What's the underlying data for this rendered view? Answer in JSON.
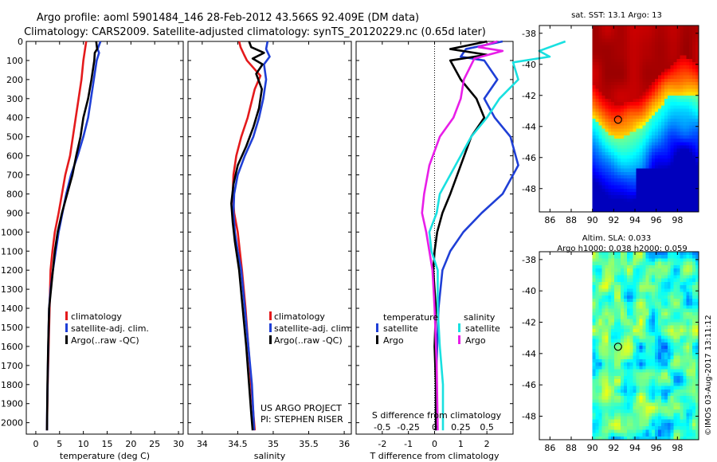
{
  "header": {
    "line1": "Argo profile: aoml 5901484_146 28-Feb-2012 43.566S 92.409E (DM data)",
    "line2": "Climatology: CARS2009. Satellite-adjusted climatology: synTS_20120229.nc (0.65d later)"
  },
  "colors": {
    "climatology": "#e41a1c",
    "satellite": "#1f3fd6",
    "argo": "#000000",
    "sat_salinity": "#19e0e0",
    "argo_salinity": "#e81ee8"
  },
  "chart_data": [
    {
      "id": "temperature",
      "type": "line",
      "xlabel": "temperature (deg C)",
      "ylabel": "",
      "xlim": [
        -2,
        31
      ],
      "ylim": [
        2060,
        0
      ],
      "xticks": [
        0,
        5,
        10,
        15,
        20,
        25,
        30
      ],
      "xticklabels": [
        "0",
        "5",
        "10",
        "15",
        "20",
        "25",
        "30"
      ],
      "yticks": [
        0,
        100,
        200,
        300,
        400,
        500,
        600,
        700,
        800,
        900,
        1000,
        1100,
        1200,
        1300,
        1400,
        1500,
        1600,
        1700,
        1800,
        1900,
        2000
      ],
      "yticklabels": [
        "0",
        "100",
        "200",
        "300",
        "400",
        "500",
        "600",
        "700",
        "800",
        "900",
        "1000",
        "1100",
        "1200",
        "1300",
        "1400",
        "1500",
        "1600",
        "1700",
        "1800",
        "1900",
        "2000"
      ],
      "legend": [
        "climatology",
        "satellite-adj. clim.",
        "Argo(..raw -QC)"
      ],
      "series": [
        {
          "name": "climatology",
          "color": "#e41a1c",
          "x": [
            10.6,
            10.3,
            10.0,
            9.6,
            9.0,
            8.4,
            7.8,
            7.2,
            6.2,
            5.5,
            4.8,
            4.0,
            3.5,
            3.1,
            2.9,
            2.7,
            2.5,
            2.4,
            2.35
          ],
          "y": [
            0,
            50,
            100,
            200,
            300,
            400,
            500,
            600,
            700,
            800,
            900,
            1000,
            1100,
            1200,
            1400,
            1600,
            1800,
            1950,
            2040
          ]
        },
        {
          "name": "satellite-adj. clim.",
          "color": "#1f3fd6",
          "x": [
            13.6,
            13.0,
            13.3,
            12.8,
            12.2,
            11.6,
            11.0,
            10.0,
            8.8,
            7.4,
            6.4,
            5.6,
            4.8,
            4.2,
            3.6,
            3.1,
            2.8,
            2.7,
            2.55,
            2.4,
            2.35
          ],
          "y": [
            0,
            40,
            60,
            100,
            200,
            300,
            400,
            500,
            600,
            700,
            800,
            900,
            1000,
            1100,
            1200,
            1300,
            1400,
            1500,
            1700,
            1900,
            2040
          ]
        },
        {
          "name": "Argo(..raw -QC)",
          "color": "#000000",
          "x": [
            12.7,
            12.9,
            12.4,
            12.3,
            11.7,
            11.0,
            10.0,
            9.4,
            8.5,
            7.7,
            6.6,
            5.5,
            4.6,
            4.0,
            3.6,
            3.2,
            2.8,
            2.6,
            2.45,
            2.35
          ],
          "y": [
            0,
            40,
            60,
            100,
            200,
            300,
            400,
            500,
            600,
            700,
            800,
            900,
            1000,
            1100,
            1200,
            1300,
            1400,
            1600,
            1800,
            2040
          ]
        }
      ]
    },
    {
      "id": "salinity",
      "type": "line",
      "xlabel": "salinity",
      "xlim": [
        33.8,
        36.1
      ],
      "ylim": [
        2060,
        0
      ],
      "xticks": [
        34,
        34.5,
        35,
        35.5,
        36
      ],
      "xticklabels": [
        "34",
        "34.5",
        "35",
        "35.5",
        "36"
      ],
      "legend": [
        "climatology",
        "satellite-adj. clim.",
        "Argo(..raw -QC)"
      ],
      "annotation": [
        "US ARGO PROJECT",
        "PI: STEPHEN RISER"
      ],
      "series": [
        {
          "name": "climatology",
          "color": "#e41a1c",
          "x": [
            34.52,
            34.54,
            34.59,
            34.63,
            34.82,
            34.74,
            34.64,
            34.55,
            34.48,
            34.44,
            34.43,
            34.45,
            34.5,
            34.56,
            34.61,
            34.65,
            34.69,
            34.72,
            34.74
          ],
          "y": [
            0,
            30,
            70,
            100,
            180,
            250,
            400,
            500,
            600,
            700,
            800,
            900,
            1000,
            1200,
            1400,
            1600,
            1800,
            1950,
            2040
          ]
        },
        {
          "name": "satellite-adj. clim.",
          "color": "#1f3fd6",
          "x": [
            34.92,
            34.9,
            34.95,
            34.87,
            34.9,
            34.86,
            34.8,
            34.72,
            34.6,
            34.5,
            34.45,
            34.44,
            34.46,
            34.5,
            34.55,
            34.6,
            34.65,
            34.7,
            34.72,
            34.73
          ],
          "y": [
            0,
            40,
            80,
            120,
            200,
            300,
            400,
            500,
            600,
            700,
            800,
            900,
            1000,
            1100,
            1200,
            1400,
            1600,
            1800,
            1950,
            2040
          ]
        },
        {
          "name": "Argo(..raw -QC)",
          "color": "#000000",
          "x": [
            34.66,
            34.69,
            34.87,
            34.71,
            34.85,
            34.76,
            34.84,
            34.8,
            34.72,
            34.62,
            34.5,
            34.44,
            34.41,
            34.43,
            34.46,
            34.52,
            34.57,
            34.62,
            34.66,
            34.69,
            34.71
          ],
          "y": [
            0,
            30,
            60,
            90,
            120,
            170,
            250,
            350,
            450,
            550,
            650,
            750,
            850,
            950,
            1050,
            1200,
            1400,
            1600,
            1800,
            1950,
            2040
          ]
        }
      ]
    },
    {
      "id": "difference",
      "type": "line",
      "xlabel": "T difference from climatology",
      "toplabel": "S difference from climatology",
      "xlim": [
        -3,
        3
      ],
      "ylim": [
        2060,
        0
      ],
      "xticks": [
        -2,
        -1,
        0,
        1,
        2
      ],
      "xticklabels": [
        "-2",
        "-1",
        "0",
        "1",
        "2"
      ],
      "sticks": [
        -0.5,
        -0.25,
        0,
        0.25,
        0.5
      ],
      "sticklabels": [
        "-0.5",
        "-0.25",
        "0",
        "0.25",
        "0.5"
      ],
      "legend_headers": [
        "temperature",
        "salinity"
      ],
      "legend": [
        "satellite",
        "Argo",
        "satellite",
        "Argo"
      ],
      "series": [
        {
          "name": "T satellite",
          "color": "#1f3fd6",
          "x": [
            2.6,
            1.2,
            1.0,
            1.9,
            2.4,
            1.9,
            2.3,
            2.9,
            3.2,
            2.6,
            1.8,
            1.1,
            0.6,
            0.3,
            0.15,
            0.1,
            0.05,
            0.05,
            0.05
          ],
          "y": [
            0,
            40,
            80,
            100,
            200,
            300,
            400,
            500,
            650,
            800,
            900,
            1000,
            1100,
            1200,
            1400,
            1600,
            1800,
            1950,
            2040
          ]
        },
        {
          "name": "T Argo",
          "color": "#000000",
          "x": [
            2.0,
            0.6,
            2.0,
            0.6,
            1.0,
            1.6,
            1.9,
            1.4,
            1.0,
            0.6,
            0.3,
            0.1,
            0.0,
            -0.05,
            0.05,
            0.0,
            0.05,
            0.05
          ],
          "y": [
            0,
            40,
            70,
            100,
            200,
            300,
            400,
            500,
            650,
            800,
            900,
            1000,
            1100,
            1200,
            1400,
            1600,
            1800,
            2040
          ]
        },
        {
          "name": "S satellite",
          "color": "#19e0e0",
          "x": [
            1.25,
            1.0,
            1.1,
            0.75,
            0.8,
            0.62,
            0.5,
            0.35,
            0.2,
            0.05,
            0.02,
            -0.05,
            -0.03,
            0.03,
            0.03,
            0.05,
            0.08,
            0.08
          ],
          "y": [
            0,
            50,
            80,
            110,
            200,
            300,
            400,
            500,
            650,
            800,
            900,
            1000,
            1100,
            1200,
            1400,
            1600,
            1800,
            2040
          ]
        },
        {
          "name": "S Argo",
          "color": "#e81ee8",
          "x": [
            0.6,
            0.42,
            0.65,
            0.38,
            0.28,
            0.25,
            0.18,
            0.05,
            -0.05,
            -0.1,
            -0.12,
            -0.08,
            -0.05,
            -0.02,
            0.0,
            0.02,
            0.03
          ],
          "y": [
            0,
            30,
            50,
            90,
            200,
            300,
            400,
            500,
            650,
            800,
            900,
            1000,
            1100,
            1200,
            1400,
            1700,
            2040
          ]
        }
      ]
    }
  ],
  "maps": {
    "xticks": [
      86,
      88,
      90,
      92,
      94,
      96,
      98
    ],
    "xticklabels": [
      "86",
      "88",
      "90",
      "92",
      "94",
      "96",
      "98"
    ],
    "yticks": [
      -38,
      -40,
      -42,
      -44,
      -46,
      -48
    ],
    "yticklabels": [
      "-38",
      "-40",
      "-42",
      "-44",
      "-46",
      "-48"
    ],
    "lon_range": [
      85,
      100
    ],
    "lat_range": [
      -49.5,
      -37.5
    ],
    "data_lon_min": 90,
    "float_lon": 92.409,
    "float_lat": -43.566,
    "sst_title": "sat. SST: 13.1  Argo: 13",
    "sla_title1": "Altim. SLA: 0.033",
    "sla_title2": "Argo h1000: 0.038 h2000: 0.059"
  },
  "credit": "©IMOS 03-Aug-2017 13:11:12"
}
